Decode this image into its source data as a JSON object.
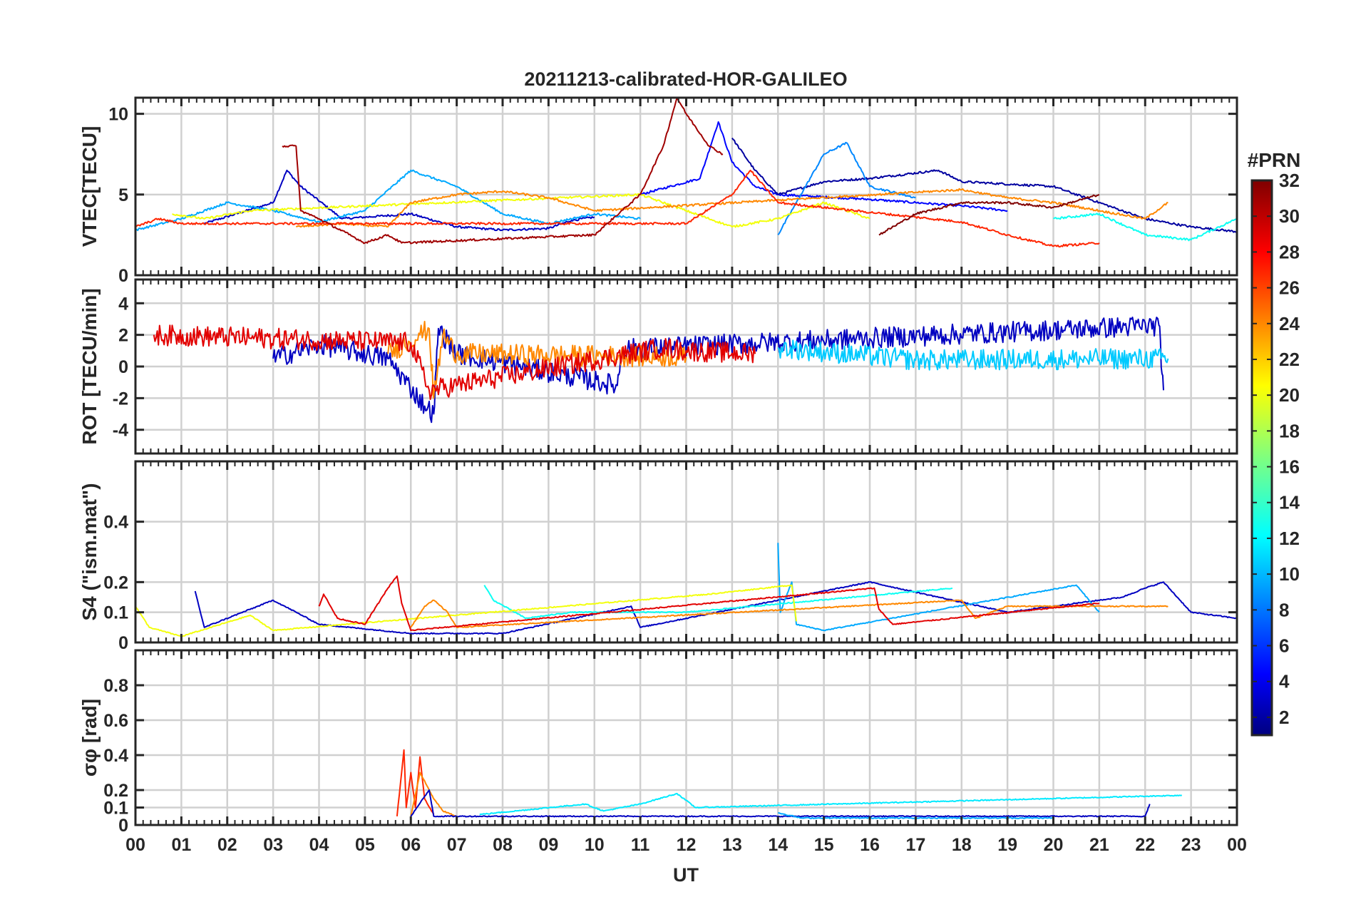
{
  "chart_data": {
    "type": "line",
    "title": "20211213-calibrated-HOR-GALILEO",
    "xlabel": "UT",
    "x_ticks": [
      "00",
      "01",
      "02",
      "03",
      "04",
      "05",
      "06",
      "07",
      "08",
      "09",
      "10",
      "11",
      "12",
      "13",
      "14",
      "15",
      "16",
      "17",
      "18",
      "19",
      "20",
      "21",
      "22",
      "23",
      "00"
    ],
    "xlim": [
      0,
      24
    ],
    "grid": true,
    "colorbar": {
      "title": "#PRN",
      "range": [
        1,
        32
      ],
      "ticks": [
        2,
        4,
        6,
        8,
        10,
        12,
        14,
        16,
        18,
        20,
        22,
        24,
        26,
        28,
        30,
        32
      ],
      "colormap": "jet"
    },
    "panels": [
      {
        "id": "vtec",
        "ylabel": "VTEC[TECU]",
        "ylim": [
          0,
          11
        ],
        "yticks": [
          0,
          5,
          10
        ],
        "series": [
          {
            "prn": 3,
            "x": [
              1.5,
              3.0,
              3.3,
              3.6,
              4.5,
              6.0,
              7.0,
              8.0,
              9.0,
              9.5,
              10.0
            ],
            "y": [
              3.2,
              4.5,
              6.5,
              5.5,
              3.5,
              3.8,
              3.0,
              2.8,
              2.9,
              3.4,
              3.6
            ]
          },
          {
            "prn": 5,
            "x": [
              11.0,
              12.3,
              12.7,
              13.0,
              13.5,
              14.0,
              16.0,
              17.0,
              18.0,
              19.0
            ],
            "y": [
              5.0,
              6.0,
              9.5,
              7.0,
              5.5,
              5.0,
              4.7,
              4.5,
              4.3,
              4.0
            ]
          },
          {
            "prn": 2,
            "x": [
              13.0,
              13.5,
              14.0,
              15.0,
              16.0,
              17.5,
              18.0,
              20.0,
              21.0,
              22.0,
              23.0,
              24.0
            ],
            "y": [
              8.5,
              6.5,
              5.0,
              5.8,
              6.0,
              6.5,
              5.8,
              5.5,
              4.5,
              3.5,
              3.0,
              2.7
            ]
          },
          {
            "prn": 9,
            "x": [
              14.0,
              14.5,
              15.0,
              15.5,
              16.0,
              17.0
            ],
            "y": [
              2.5,
              5.0,
              7.5,
              8.2,
              5.5,
              4.8
            ]
          },
          {
            "prn": 10,
            "x": [
              0.0,
              1.0,
              2.0,
              3.0,
              4.0,
              5.0,
              6.0,
              7.0,
              8.0,
              9.0,
              10.0,
              11.0
            ],
            "y": [
              2.8,
              3.5,
              4.5,
              4.0,
              3.3,
              4.0,
              6.5,
              5.5,
              3.8,
              3.2,
              3.8,
              3.5
            ]
          },
          {
            "prn": 13,
            "x": [
              20.0,
              21.0,
              22.0,
              23.0,
              24.0
            ],
            "y": [
              3.5,
              3.8,
              2.5,
              2.2,
              3.5
            ]
          },
          {
            "prn": 20,
            "x": [
              0.8,
              1.5,
              2.5,
              11.0,
              12.0,
              13.0,
              14.0,
              15.0,
              16.0
            ],
            "y": [
              3.8,
              3.5,
              4.0,
              5.0,
              4.0,
              3.0,
              3.5,
              4.5,
              3.5
            ]
          },
          {
            "prn": 24,
            "x": [
              3.5,
              4.5,
              5.5,
              6.0,
              7.0,
              8.0,
              9.0,
              10.0,
              18.0,
              19.0,
              20.0,
              21.0,
              22.0,
              22.5
            ],
            "y": [
              3.0,
              3.2,
              3.0,
              4.5,
              5.0,
              5.2,
              4.8,
              4.0,
              5.3,
              4.8,
              4.5,
              4.0,
              3.5,
              4.5
            ]
          },
          {
            "prn": 27,
            "x": [
              0.0,
              0.5,
              1.0,
              12.0,
              13.0,
              13.4,
              14.0,
              18.0,
              19.0,
              20.0,
              21.0
            ],
            "y": [
              3.0,
              3.5,
              3.2,
              3.2,
              5.0,
              6.5,
              4.5,
              3.3,
              2.5,
              1.8,
              2.0
            ]
          },
          {
            "prn": 31,
            "x": [
              3.2,
              3.5,
              3.6,
              4.0,
              5.0,
              5.5,
              5.8,
              10.0,
              11.0,
              11.5,
              11.8,
              12.0,
              12.5,
              12.8
            ],
            "y": [
              8.0,
              8.0,
              4.0,
              3.5,
              2.0,
              2.5,
              2.0,
              2.5,
              5.0,
              8.0,
              11.0,
              10.0,
              8.0,
              7.5
            ]
          },
          {
            "prn": 32,
            "x": [
              16.2,
              17.0,
              18.0,
              19.0,
              20.0,
              21.0
            ],
            "y": [
              2.5,
              3.8,
              4.5,
              4.5,
              4.2,
              5.0
            ]
          }
        ]
      },
      {
        "id": "rot",
        "ylabel": "ROT [TECU/min]",
        "ylim": [
          -5.5,
          5.5
        ],
        "yticks": [
          -4,
          -2,
          0,
          2,
          4
        ],
        "series": [
          {
            "prn": 3,
            "x": [
              3.0,
              4.0,
              5.5,
              6.3,
              6.5,
              6.6,
              7.0,
              10.5,
              10.6,
              22.3,
              22.4
            ],
            "y": [
              0.5,
              1.4,
              0.5,
              -2.5,
              -3.0,
              2.4,
              0.8,
              -1.2,
              1.1,
              2.6,
              -1.5
            ]
          },
          {
            "prn": 24,
            "x": [
              5.5,
              6.2,
              6.4,
              6.5,
              6.7,
              7.0,
              12.0
            ],
            "y": [
              0.8,
              2.0,
              2.4,
              -2.0,
              2.0,
              0.8,
              0.6
            ]
          },
          {
            "prn": 29,
            "x": [
              0.4,
              6.0,
              6.4,
              11.5,
              12.0,
              13.5
            ],
            "y": [
              2.0,
              1.5,
              -1.5,
              1.2,
              1.0,
              0.8
            ]
          },
          {
            "prn": 11,
            "x": [
              14.0,
              17.0,
              22.5
            ],
            "y": [
              1.2,
              0.4,
              0.5
            ]
          }
        ]
      },
      {
        "id": "s4",
        "ylabel": "S4 (\"ism.mat\")",
        "ylim": [
          0,
          0.6
        ],
        "yticks": [
          0,
          0.1,
          0.2,
          0.4
        ],
        "series": [
          {
            "prn": 3,
            "x": [
              1.3,
              1.5,
              3.0,
              4.0,
              6.0,
              8.0,
              10.8,
              11.0,
              16.0,
              19.0,
              21.5,
              22.0,
              22.4,
              23.0,
              24.0
            ],
            "y": [
              0.17,
              0.05,
              0.14,
              0.06,
              0.03,
              0.03,
              0.12,
              0.05,
              0.2,
              0.1,
              0.15,
              0.18,
              0.2,
              0.1,
              0.08
            ]
          },
          {
            "prn": 10,
            "x": [
              14.0,
              14.05,
              14.3,
              14.4,
              15.0,
              20.5,
              21.0
            ],
            "y": [
              0.33,
              0.1,
              0.2,
              0.06,
              0.04,
              0.19,
              0.1
            ]
          },
          {
            "prn": 13,
            "x": [
              7.6,
              7.8,
              8.5,
              9.5,
              12.0,
              17.8
            ],
            "y": [
              0.19,
              0.14,
              0.08,
              0.1,
              0.1,
              0.18
            ]
          },
          {
            "prn": 20,
            "x": [
              0.0,
              0.3,
              1.0,
              2.5,
              3.0,
              12.5,
              14.3,
              14.4
            ],
            "y": [
              0.12,
              0.05,
              0.02,
              0.09,
              0.04,
              0.16,
              0.19,
              0.07
            ]
          },
          {
            "prn": 24,
            "x": [
              6.0,
              6.3,
              6.5,
              6.8,
              7.0,
              18.0,
              18.3,
              19.0,
              22.5
            ],
            "y": [
              0.05,
              0.12,
              0.14,
              0.1,
              0.05,
              0.14,
              0.08,
              0.12,
              0.12
            ]
          },
          {
            "prn": 29,
            "x": [
              4.0,
              4.1,
              4.4,
              5.0,
              5.5,
              5.7,
              5.8,
              6.0,
              16.1,
              16.2,
              16.5,
              21.0
            ],
            "y": [
              0.12,
              0.16,
              0.08,
              0.06,
              0.18,
              0.22,
              0.13,
              0.04,
              0.18,
              0.11,
              0.06,
              0.13
            ]
          }
        ]
      },
      {
        "id": "sigma_phi",
        "ylabel": "σφ [rad]",
        "ylim": [
          0,
          1.0
        ],
        "yticks": [
          0,
          0.1,
          0.2,
          0.4,
          0.6,
          0.8
        ],
        "series": [
          {
            "prn": 27,
            "x": [
              5.7,
              5.85,
              5.9,
              6.0,
              6.1,
              6.2,
              6.3,
              6.5
            ],
            "y": [
              0.05,
              0.43,
              0.1,
              0.3,
              0.1,
              0.39,
              0.15,
              0.06
            ]
          },
          {
            "prn": 24,
            "x": [
              6.0,
              6.2,
              6.4,
              6.5,
              6.7,
              7.0
            ],
            "y": [
              0.05,
              0.3,
              0.2,
              0.15,
              0.08,
              0.05
            ]
          },
          {
            "prn": 3,
            "x": [
              6.0,
              6.4,
              6.5,
              22.0,
              22.1
            ],
            "y": [
              0.05,
              0.2,
              0.05,
              0.05,
              0.12
            ]
          },
          {
            "prn": 12,
            "x": [
              7.5,
              9.8,
              10.2,
              11.0,
              11.8,
              12.2,
              22.8
            ],
            "y": [
              0.06,
              0.12,
              0.08,
              0.12,
              0.18,
              0.1,
              0.17
            ]
          },
          {
            "prn": 10,
            "x": [
              14.0,
              14.5,
              16.0,
              20.0
            ],
            "y": [
              0.07,
              0.04,
              0.04,
              0.04
            ]
          }
        ]
      }
    ]
  }
}
